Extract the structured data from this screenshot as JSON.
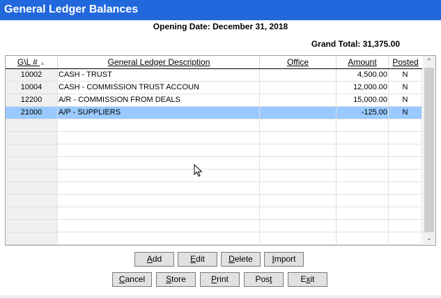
{
  "window": {
    "title": "General Ledger Balances"
  },
  "header": {
    "opening_date": "Opening Date: December 31, 2018",
    "grand_total": "Grand Total: 31,375.00"
  },
  "grid": {
    "columns": [
      {
        "key": "gl",
        "label": "G\\L #",
        "sort": "ascending"
      },
      {
        "key": "desc",
        "label": "General Ledger Description"
      },
      {
        "key": "office",
        "label": "Office"
      },
      {
        "key": "amount",
        "label": "Amount"
      },
      {
        "key": "posted",
        "label": "Posted"
      }
    ],
    "sort_icon": "sort-ascending-icon",
    "rows": [
      {
        "gl": "10002",
        "desc": "CASH - TRUST",
        "office": "",
        "amount": "4,500.00",
        "posted": "N",
        "selected": false
      },
      {
        "gl": "10004",
        "desc": "CASH - COMMISSION TRUST ACCOUN",
        "office": "",
        "amount": "12,000.00",
        "posted": "N",
        "selected": false
      },
      {
        "gl": "12200",
        "desc": "A/R - COMMISSION FROM DEALS",
        "office": "",
        "amount": "15,000.00",
        "posted": "N",
        "selected": false
      },
      {
        "gl": "21000",
        "desc": "A/P - SUPPLIERS",
        "office": "",
        "amount": "-125.00",
        "posted": "N",
        "selected": true
      }
    ],
    "selection_color": "#99c9ff"
  },
  "buttons": {
    "row1": [
      {
        "label": "Add",
        "accel": "A"
      },
      {
        "label": "Edit",
        "accel": "E"
      },
      {
        "label": "Delete",
        "accel": "D"
      },
      {
        "label": "Import",
        "accel": "I"
      }
    ],
    "row2": [
      {
        "label": "Cancel",
        "accel": "C"
      },
      {
        "label": "Store",
        "accel": "S"
      },
      {
        "label": "Print",
        "accel": "P"
      },
      {
        "label": "Post",
        "accel": "t"
      },
      {
        "label": "Exit",
        "accel": "x"
      }
    ]
  },
  "colors": {
    "title_bar": "#2268dd",
    "selection": "#99c9ff"
  }
}
